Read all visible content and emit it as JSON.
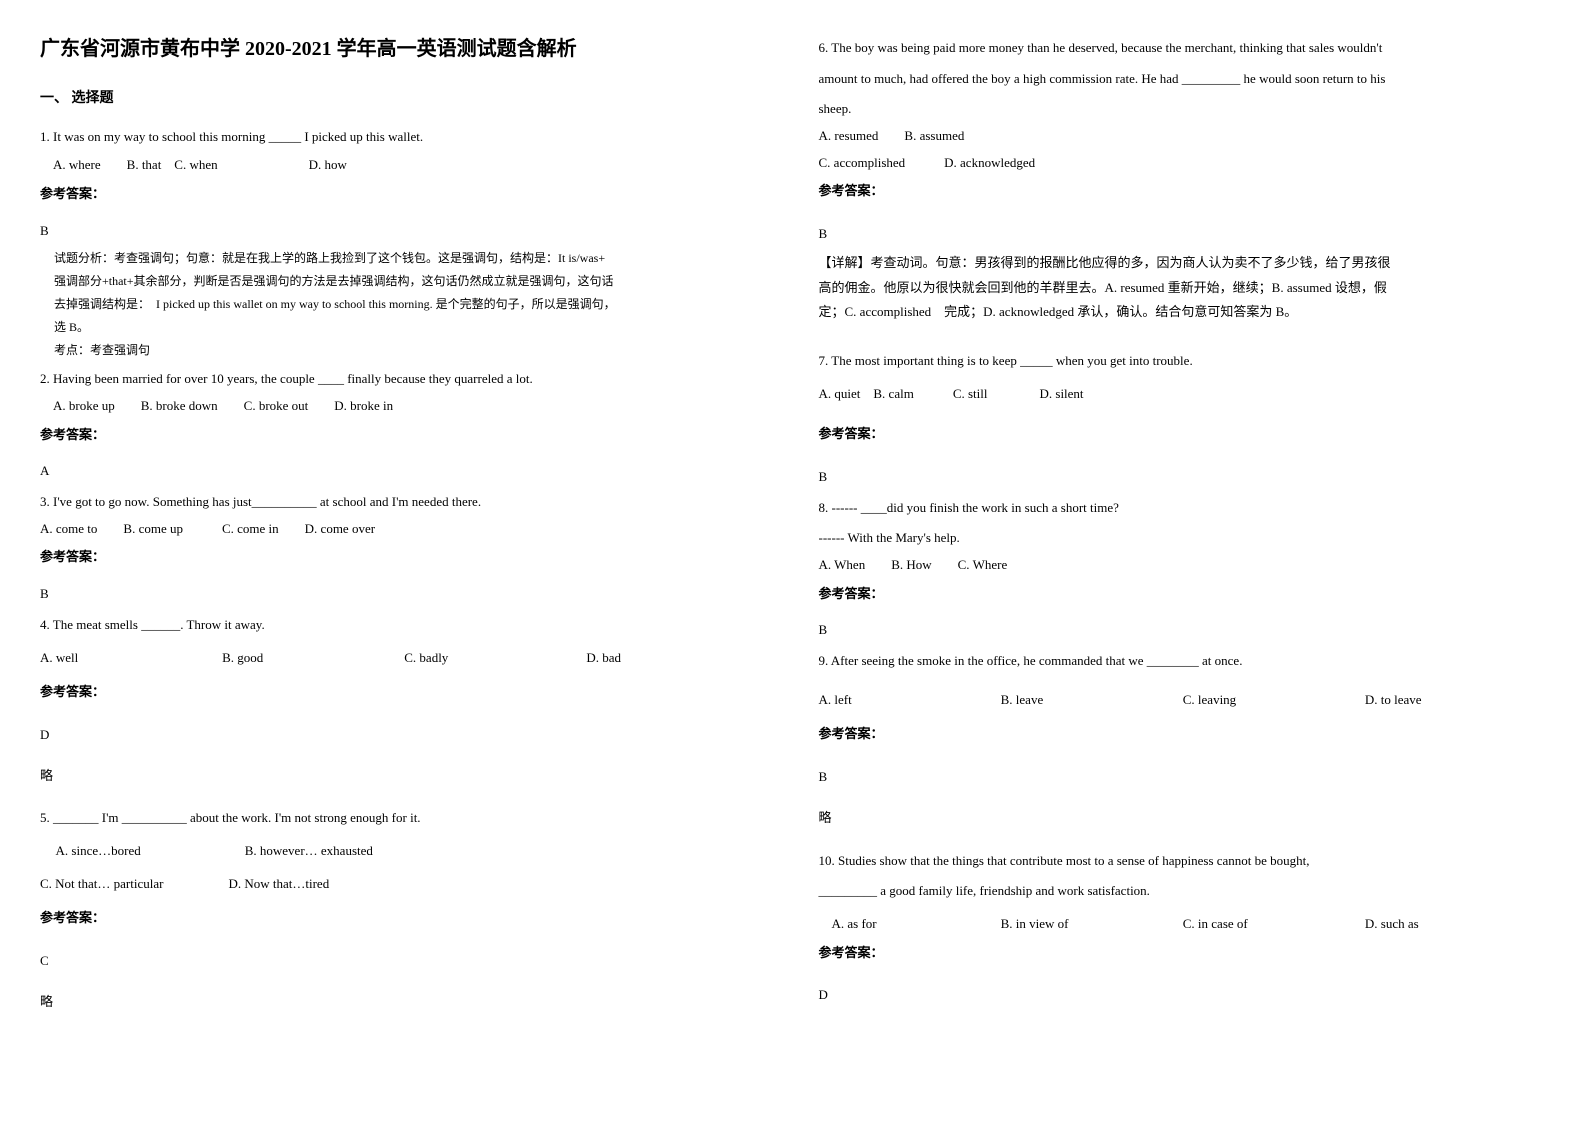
{
  "title": "广东省河源市黄布中学 2020-2021 学年高一英语测试题含解析",
  "section_heading": "一、 选择题",
  "answer_label": "参考答案：",
  "note_omit": "略",
  "left": {
    "q1": {
      "stem": "1. It was on my way to school this morning _____ I picked up this wallet.",
      "options": "　A. where　　B. that　C. when　　　　　　　D. how",
      "answer": "B",
      "analysis_lines": [
        "试题分析：考查强调句；句意：就是在我上学的路上我捡到了这个钱包。这是强调句，结构是：It is/was+",
        "强调部分+that+其余部分，判断是否是强调句的方法是去掉强调结构，这句话仍然成立就是强调句，这句话",
        "去掉强调结构是：　I picked up this wallet on my way to school this morning. 是个完整的句子，所以是强调句，",
        "选 B。",
        "考点：考查强调句"
      ]
    },
    "q2": {
      "stem": "2. Having been married for over 10 years, the couple ____ finally because they quarreled a lot.",
      "options": "　A. broke up　　B. broke down　　C. broke out　　D. broke in",
      "answer": "A"
    },
    "q3": {
      "stem": "3. I've got to go now. Something has just__________ at school and I'm needed there.",
      "options": " A. come to　　B. come up　　　C. come in　　D. come over",
      "answer": "B"
    },
    "q4": {
      "stem": "4. The meat smells ______. Throw it away.",
      "opts": {
        "a": "A. well",
        "b": "B. good",
        "c": "C. badly",
        "d": "D. bad"
      },
      "answer": "D"
    },
    "q5": {
      "stem": "5. _______ I'm __________ about the work. I'm not strong enough for it.",
      "line1": "　 A. since…bored　　　　　　　　B. however… exhausted",
      "line2": "C. Not that… particular　　　　　D. Now that…tired",
      "answer": "C"
    }
  },
  "right": {
    "q6": {
      "stem1": "6. The boy was being paid more money than he deserved, because the merchant, thinking that sales wouldn't",
      "stem2": "amount to much, had offered the boy a high commission rate. He had _________ he would soon return to his",
      "stem3": "sheep.",
      "opts1": "A. resumed　　B. assumed",
      "opts2": "C. accomplished　　　D. acknowledged",
      "answer": "B",
      "analysis_lines": [
        "【详解】考查动词。句意：男孩得到的报酬比他应得的多，因为商人认为卖不了多少钱，给了男孩很",
        "高的佣金。他原以为很快就会回到他的羊群里去。A. resumed 重新开始，继续；B. assumed 设想，假",
        "定；C. accomplished　完成；D. acknowledged 承认，确认。结合句意可知答案为 B。"
      ]
    },
    "q7": {
      "stem": "7. The most important thing is to keep _____ when you get into trouble.",
      "options": "A. quiet　B. calm　　　C. still　　　　D. silent",
      "answer": "B"
    },
    "q8": {
      "stem": "8. ------ ____did you finish the work in such a short time?",
      "stem2": "------ With the Mary's help.",
      "options": "A. When　　B. How　　C. Where",
      "answer": "B"
    },
    "q9": {
      "stem": "9. After seeing the smoke in the office, he commanded that we ________ at once.",
      "opts": {
        "a": "A. left",
        "b": "B. leave",
        "c": "C. leaving",
        "d": "D. to leave"
      },
      "answer": "B"
    },
    "q10": {
      "stem1": "10. Studies show that the things that contribute most to a sense of happiness cannot be bought,",
      "stem2": "_________ a good family life, friendship and work satisfaction.",
      "opts": {
        "a": "　A. as for",
        "b": "B. in view of",
        "c": "C. in case of",
        "d": "D. such as"
      },
      "answer": "D"
    }
  }
}
